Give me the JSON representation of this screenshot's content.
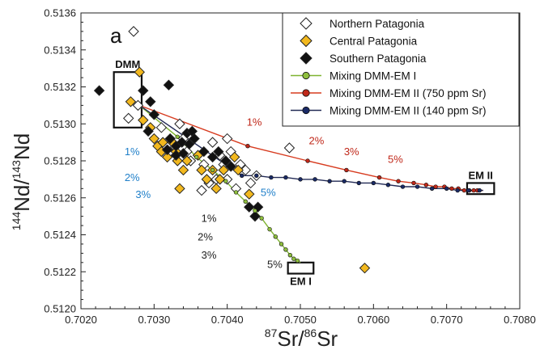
{
  "chart_data": {
    "type": "scatter",
    "panel_label": "a",
    "xlabel": {
      "sup1": "87",
      "main1": "Sr/",
      "sup2": "86",
      "main2": "Sr"
    },
    "ylabel": {
      "sup1": "144",
      "main1": "Nd/",
      "sup2": "143",
      "main2": "Nd"
    },
    "xlim": [
      0.702,
      0.708
    ],
    "ylim": [
      0.512,
      0.5136
    ],
    "xticks": [
      "0.7020",
      "0.7030",
      "0.7040",
      "0.7050",
      "0.7060",
      "0.7070",
      "0.7080"
    ],
    "yticks": [
      "0.5120",
      "0.5122",
      "0.5124",
      "0.5126",
      "0.5128",
      "0.5130",
      "0.5132",
      "0.5134",
      "0.5136"
    ],
    "legend_position": "top-right",
    "series": [
      {
        "name": "Northern Patagonia",
        "marker": "diamond",
        "fill": "#ffffff",
        "points": [
          [
            0.70272,
            0.5135
          ],
          [
            0.70265,
            0.51303
          ],
          [
            0.70278,
            0.5131
          ],
          [
            0.7031,
            0.51298
          ],
          [
            0.70322,
            0.51285
          ],
          [
            0.70335,
            0.513
          ],
          [
            0.7034,
            0.51292
          ],
          [
            0.70345,
            0.51285
          ],
          [
            0.7035,
            0.5128
          ],
          [
            0.70368,
            0.51278
          ],
          [
            0.7038,
            0.5129
          ],
          [
            0.7039,
            0.51283
          ],
          [
            0.70395,
            0.51278
          ],
          [
            0.70385,
            0.5127
          ],
          [
            0.70365,
            0.51264
          ],
          [
            0.70375,
            0.51268
          ],
          [
            0.704,
            0.51292
          ],
          [
            0.70405,
            0.51285
          ],
          [
            0.70418,
            0.51278
          ],
          [
            0.70432,
            0.51268
          ],
          [
            0.704,
            0.5127
          ],
          [
            0.70412,
            0.51265
          ],
          [
            0.70425,
            0.51275
          ],
          [
            0.70485,
            0.51287
          ],
          [
            0.7044,
            0.51272
          ]
        ]
      },
      {
        "name": "Central Patagonia",
        "marker": "diamond",
        "fill": "#f2b81e",
        "points": [
          [
            0.7028,
            0.51328
          ],
          [
            0.70268,
            0.51312
          ],
          [
            0.70285,
            0.51302
          ],
          [
            0.70295,
            0.51298
          ],
          [
            0.703,
            0.51292
          ],
          [
            0.70305,
            0.51288
          ],
          [
            0.7031,
            0.51285
          ],
          [
            0.70318,
            0.51282
          ],
          [
            0.70312,
            0.5129
          ],
          [
            0.70325,
            0.5129
          ],
          [
            0.7033,
            0.51285
          ],
          [
            0.70332,
            0.5128
          ],
          [
            0.7034,
            0.51275
          ],
          [
            0.70345,
            0.5128
          ],
          [
            0.7036,
            0.51283
          ],
          [
            0.70365,
            0.51275
          ],
          [
            0.70372,
            0.5127
          ],
          [
            0.7038,
            0.51275
          ],
          [
            0.70385,
            0.51265
          ],
          [
            0.70395,
            0.51275
          ],
          [
            0.70335,
            0.51265
          ],
          [
            0.7039,
            0.5127
          ],
          [
            0.7041,
            0.51282
          ],
          [
            0.70415,
            0.51275
          ],
          [
            0.7043,
            0.51262
          ],
          [
            0.70588,
            0.51222
          ]
        ]
      },
      {
        "name": "Southern Patagonia",
        "marker": "diamond",
        "fill": "#111111",
        "points": [
          [
            0.70225,
            0.51318
          ],
          [
            0.70285,
            0.51318
          ],
          [
            0.70295,
            0.51312
          ],
          [
            0.703,
            0.51305
          ],
          [
            0.7032,
            0.51321
          ],
          [
            0.70322,
            0.51292
          ],
          [
            0.70318,
            0.51286
          ],
          [
            0.7033,
            0.51288
          ],
          [
            0.70338,
            0.5129
          ],
          [
            0.70345,
            0.51295
          ],
          [
            0.70348,
            0.51289
          ],
          [
            0.70352,
            0.51296
          ],
          [
            0.70355,
            0.51292
          ],
          [
            0.7033,
            0.51283
          ],
          [
            0.7034,
            0.51284
          ],
          [
            0.70368,
            0.51285
          ],
          [
            0.7038,
            0.51282
          ],
          [
            0.70388,
            0.51285
          ],
          [
            0.70398,
            0.5128
          ],
          [
            0.70405,
            0.51277
          ],
          [
            0.70292,
            0.51296
          ],
          [
            0.7043,
            0.51255
          ],
          [
            0.70442,
            0.51255
          ],
          [
            0.70438,
            0.5125
          ]
        ]
      }
    ],
    "mixing_lines": [
      {
        "name": "Mixing DMM-EM I",
        "color": "#7fb431",
        "marker_fill": "#8fbf3e",
        "start": [
          0.7028,
          0.5131
        ],
        "end": [
          0.705,
          0.51225
        ],
        "points": [
          [
            0.70332,
            0.51293
          ],
          [
            0.70358,
            0.51282
          ],
          [
            0.7038,
            0.51275
          ],
          [
            0.70398,
            0.51269
          ],
          [
            0.70412,
            0.51263
          ],
          [
            0.70425,
            0.51258
          ],
          [
            0.70438,
            0.51253
          ],
          [
            0.70447,
            0.51249
          ],
          [
            0.70458,
            0.51243
          ],
          [
            0.70466,
            0.51239
          ],
          [
            0.70474,
            0.51235
          ],
          [
            0.7048,
            0.51232
          ],
          [
            0.70486,
            0.51229
          ],
          [
            0.70491,
            0.51227
          ],
          [
            0.70496,
            0.51226
          ]
        ]
      },
      {
        "name": "Mixing DMM-EM II (750 ppm Sr)",
        "color": "#d73b1f",
        "marker_fill": "#c0281a",
        "start": [
          0.7028,
          0.5131
        ],
        "end": [
          0.7075,
          0.51264
        ],
        "points": [
          [
            0.70428,
            0.51288
          ],
          [
            0.7051,
            0.5128
          ],
          [
            0.70563,
            0.51275
          ],
          [
            0.70608,
            0.51271
          ],
          [
            0.70634,
            0.51269
          ],
          [
            0.70655,
            0.51268
          ],
          [
            0.70672,
            0.51267
          ],
          [
            0.70685,
            0.51266
          ],
          [
            0.70697,
            0.51266
          ],
          [
            0.70707,
            0.51265
          ],
          [
            0.70716,
            0.51265
          ],
          [
            0.70724,
            0.51264
          ],
          [
            0.70731,
            0.51264
          ],
          [
            0.70737,
            0.51264
          ],
          [
            0.70742,
            0.51264
          ]
        ]
      },
      {
        "name": "Mixing DMM-EM II (140 ppm Sr)",
        "color": "#222a55",
        "marker_fill": "#1a2a66",
        "start": [
          0.7028,
          0.5131
        ],
        "end": [
          0.7075,
          0.51264
        ],
        "points": [
          [
            0.7042,
            0.51272
          ],
          [
            0.7044,
            0.51272
          ],
          [
            0.7046,
            0.51271
          ],
          [
            0.7048,
            0.51271
          ],
          [
            0.705,
            0.5127
          ],
          [
            0.7052,
            0.5127
          ],
          [
            0.7054,
            0.51269
          ],
          [
            0.7056,
            0.51269
          ],
          [
            0.7058,
            0.51268
          ],
          [
            0.706,
            0.51268
          ],
          [
            0.7062,
            0.51267
          ],
          [
            0.7064,
            0.51266
          ],
          [
            0.7066,
            0.51266
          ],
          [
            0.7068,
            0.51265
          ],
          [
            0.707,
            0.51265
          ],
          [
            0.70715,
            0.51264
          ],
          [
            0.7073,
            0.51264
          ],
          [
            0.70745,
            0.51264
          ]
        ]
      }
    ],
    "end_members": [
      {
        "label": "DMM",
        "x": [
          0.70245,
          0.70283
        ],
        "y": [
          0.51298,
          0.51328
        ],
        "label_side": "top"
      },
      {
        "label": "EM II",
        "x": [
          0.70728,
          0.70765
        ],
        "y": [
          0.51262,
          0.51268
        ],
        "label_side": "top"
      },
      {
        "label": "EM I",
        "x": [
          0.70483,
          0.70518
        ],
        "y": [
          0.51219,
          0.51225
        ],
        "label_side": "bottom"
      }
    ],
    "annotations": [
      {
        "text": "1%",
        "x": 0.70437,
        "y": 0.51299,
        "color": "#c0281a"
      },
      {
        "text": "2%",
        "x": 0.70522,
        "y": 0.51289,
        "color": "#c0281a"
      },
      {
        "text": "3%",
        "x": 0.7057,
        "y": 0.51283,
        "color": "#c0281a"
      },
      {
        "text": "5%",
        "x": 0.7063,
        "y": 0.51279,
        "color": "#c0281a"
      },
      {
        "text": "1%",
        "x": 0.7027,
        "y": 0.51283,
        "color": "#1f7fc9"
      },
      {
        "text": "2%",
        "x": 0.7027,
        "y": 0.51269,
        "color": "#1f7fc9"
      },
      {
        "text": "3%",
        "x": 0.70285,
        "y": 0.5126,
        "color": "#1f7fc9"
      },
      {
        "text": "5%",
        "x": 0.70456,
        "y": 0.51261,
        "color": "#1f7fc9"
      },
      {
        "text": "1%",
        "x": 0.70375,
        "y": 0.51247,
        "color": "#222222"
      },
      {
        "text": "2%",
        "x": 0.7037,
        "y": 0.51237,
        "color": "#222222"
      },
      {
        "text": "3%",
        "x": 0.70375,
        "y": 0.51227,
        "color": "#222222"
      },
      {
        "text": "5%",
        "x": 0.70465,
        "y": 0.51222,
        "color": "#222222"
      }
    ]
  }
}
